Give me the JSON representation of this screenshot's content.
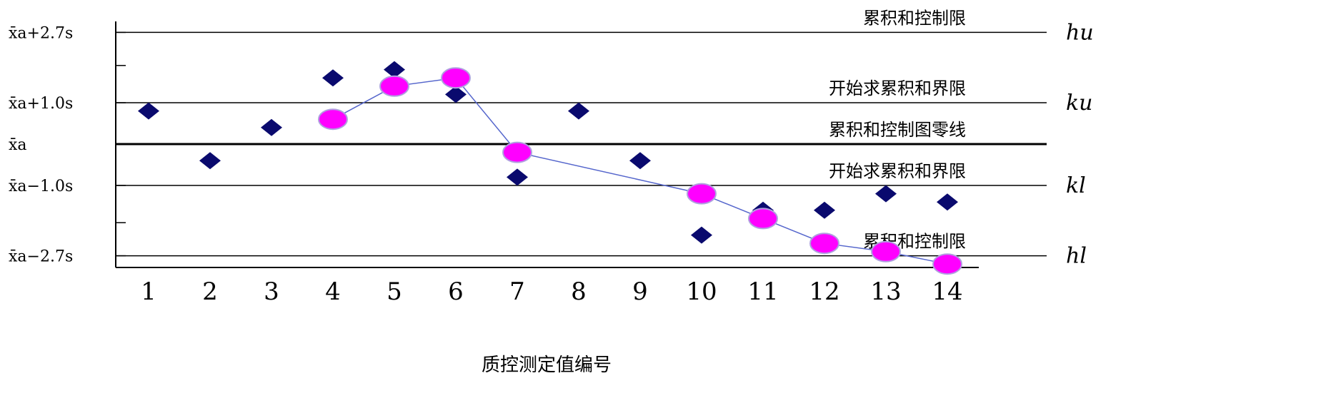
{
  "chart_data": {
    "type": "scatter",
    "title": "",
    "xlabel": "质控测定值编号",
    "ylabel": "",
    "categories": [
      "1",
      "2",
      "3",
      "4",
      "5",
      "6",
      "7",
      "8",
      "9",
      "10",
      "11",
      "12",
      "13",
      "14"
    ],
    "ylim": [
      -3.0,
      2.7
    ],
    "ref_lines": [
      {
        "y": 2.7,
        "label": "累积和控制限",
        "ytick": "x̄a+2.7s",
        "rlabel": "hu"
      },
      {
        "y": 1.0,
        "label": "开始求累积和界限",
        "ytick": "x̄a+1.0s",
        "rlabel": "ku"
      },
      {
        "y": 0.0,
        "label": "累积和控制图零线",
        "ytick": "x̄a",
        "rlabel": ""
      },
      {
        "y": -1.0,
        "label": "开始求累积和界限",
        "ytick": "x̄a−1.0s",
        "rlabel": "kl"
      },
      {
        "y": -2.7,
        "label": "累积和控制限",
        "ytick": "x̄a−2.7s",
        "rlabel": "hl"
      }
    ],
    "series": [
      {
        "marker": "diamond",
        "color": "#0a0a6e",
        "x": [
          1,
          2,
          3,
          4,
          5,
          6,
          7,
          8,
          9,
          10,
          11,
          12,
          13,
          14
        ],
        "values": [
          0.8,
          -0.4,
          0.4,
          1.6,
          1.8,
          1.2,
          -0.8,
          0.8,
          -0.4,
          -2.2,
          -1.6,
          -1.6,
          -1.2,
          -1.4
        ]
      },
      {
        "marker": "circle",
        "color": "#ff00ff",
        "line_color": "#5566cc",
        "x": [
          4,
          5,
          6,
          7,
          10,
          11,
          12,
          13,
          14
        ],
        "values": [
          0.6,
          1.4,
          1.6,
          -0.2,
          -1.2,
          -1.8,
          -2.4,
          -2.6,
          -2.9
        ]
      }
    ],
    "grid": false,
    "legend": "none"
  }
}
